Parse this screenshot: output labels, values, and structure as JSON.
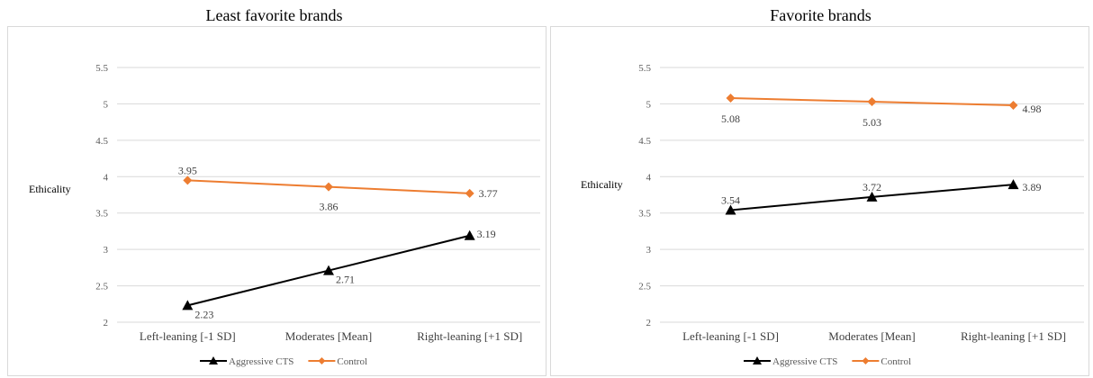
{
  "chart_data": [
    {
      "type": "line",
      "title": "Least favorite brands",
      "ylabel": "Ethicality",
      "xlabel": "",
      "categories": [
        "Left-leaning [-1 SD]",
        "Moderates [Mean]",
        "Right-leaning [+1 SD]"
      ],
      "ylim": [
        2,
        5.5
      ],
      "yticks": [
        "2",
        "2.5",
        "3",
        "3.5",
        "4",
        "4.5",
        "5",
        "5.5"
      ],
      "grid": true,
      "legend_position": "bottom",
      "series": [
        {
          "name": "Aggressive CTS",
          "values": [
            2.23,
            2.71,
            3.19
          ],
          "labels": [
            "2.23",
            "2.71",
            "3.19"
          ],
          "color": "#000000",
          "marker": "triangle"
        },
        {
          "name": "Control",
          "values": [
            3.95,
            3.86,
            3.77
          ],
          "labels": [
            "3.95",
            "3.86",
            "3.77"
          ],
          "color": "#ed7d31",
          "marker": "diamond"
        }
      ]
    },
    {
      "type": "line",
      "title": "Favorite brands",
      "ylabel": "Ethicality",
      "xlabel": "",
      "categories": [
        "Left-leaning [-1 SD]",
        "Moderates [Mean]",
        "Right-leaning [+1 SD]"
      ],
      "ylim": [
        2,
        5.5
      ],
      "yticks": [
        "2",
        "2.5",
        "3",
        "3.5",
        "4",
        "4.5",
        "5",
        "5.5"
      ],
      "grid": true,
      "legend_position": "bottom",
      "series": [
        {
          "name": "Aggressive CTS",
          "values": [
            3.54,
            3.72,
            3.89
          ],
          "labels": [
            "3.54",
            "3.72",
            "3.89"
          ],
          "color": "#000000",
          "marker": "triangle"
        },
        {
          "name": "Control",
          "values": [
            5.08,
            5.03,
            4.98
          ],
          "labels": [
            "5.08",
            "5.03",
            "4.98"
          ],
          "color": "#ed7d31",
          "marker": "diamond"
        }
      ]
    }
  ]
}
